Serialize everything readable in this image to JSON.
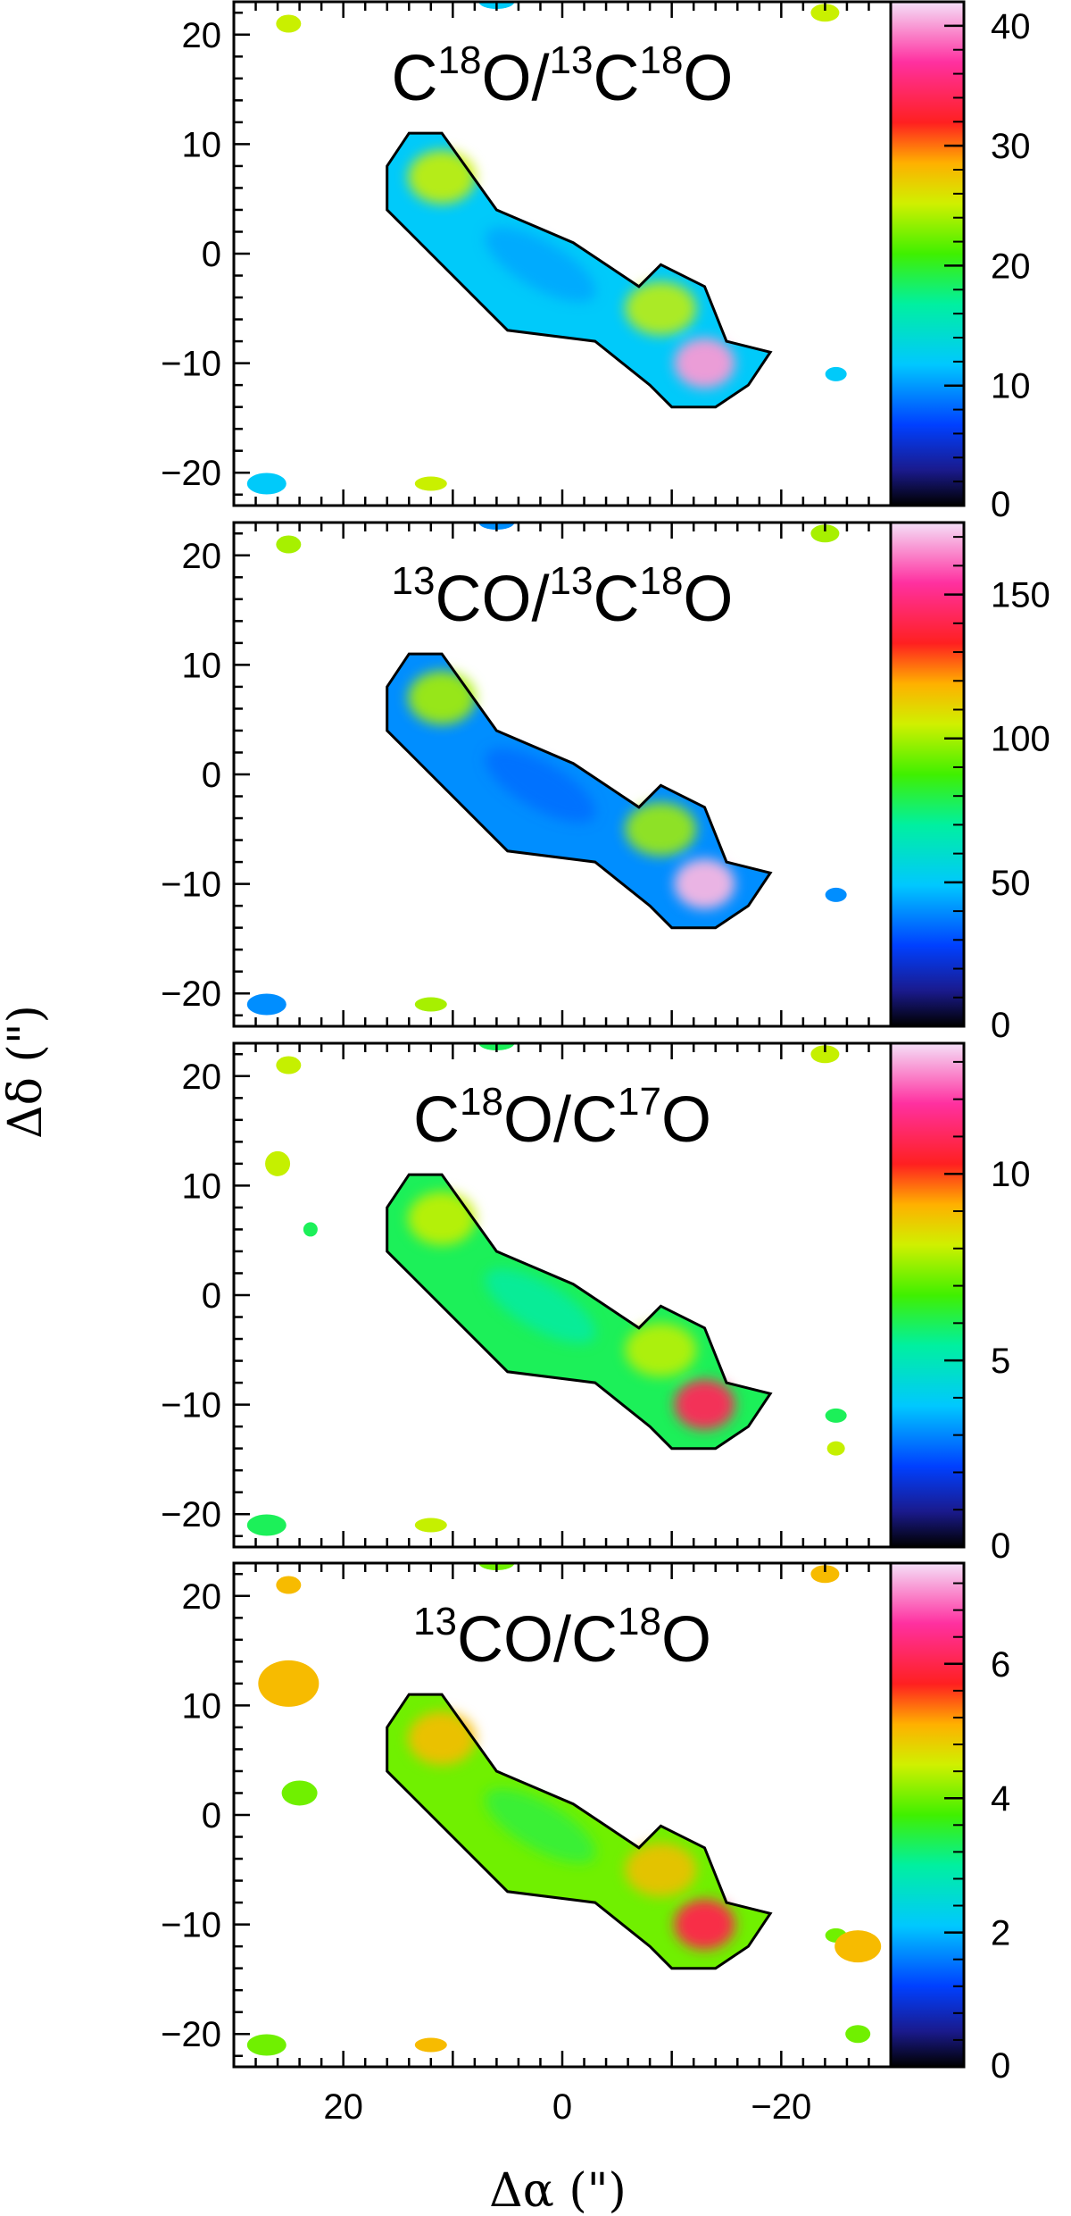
{
  "figure": {
    "xlabel": "Δα (\")",
    "ylabel": "Δδ (\")",
    "x_ticks": [
      "20",
      "0",
      "−20"
    ],
    "y_ticks": [
      "20",
      "10",
      "0",
      "−10",
      "−20"
    ]
  },
  "chart_data": [
    {
      "type": "heatmap",
      "title_parts": [
        {
          "t": "C",
          "sup": false
        },
        {
          "t": "18",
          "sup": true
        },
        {
          "t": "O/",
          "sup": false
        },
        {
          "t": "13",
          "sup": true
        },
        {
          "t": "C",
          "sup": false
        },
        {
          "t": "18",
          "sup": true
        },
        {
          "t": "O",
          "sup": false
        }
      ],
      "xlim": [
        30,
        -30
      ],
      "ylim": [
        -23,
        23
      ],
      "colorbar": {
        "min": 0,
        "max": 42,
        "ticks": [
          "40",
          "30",
          "20",
          "10",
          "0"
        ],
        "tick_values": [
          40,
          30,
          20,
          10,
          0
        ]
      },
      "typical_values": {
        "central_ridge": 12,
        "ridge_ends": 25,
        "southwest_peak": 40
      }
    },
    {
      "type": "heatmap",
      "title_parts": [
        {
          "t": "13",
          "sup": true
        },
        {
          "t": "CO/",
          "sup": false
        },
        {
          "t": "13",
          "sup": true
        },
        {
          "t": "C",
          "sup": false
        },
        {
          "t": "18",
          "sup": true
        },
        {
          "t": "O",
          "sup": false
        }
      ],
      "xlim": [
        30,
        -30
      ],
      "ylim": [
        -23,
        23
      ],
      "colorbar": {
        "min": 0,
        "max": 175,
        "ticks": [
          "150",
          "100",
          "50",
          "0"
        ],
        "tick_values": [
          150,
          100,
          50,
          0
        ]
      },
      "typical_values": {
        "central_ridge": 40,
        "ridge_ends": 100,
        "southwest_peak": 170
      }
    },
    {
      "type": "heatmap",
      "title_parts": [
        {
          "t": "C",
          "sup": false
        },
        {
          "t": "18",
          "sup": true
        },
        {
          "t": "O/C",
          "sup": false
        },
        {
          "t": "17",
          "sup": true
        },
        {
          "t": "O",
          "sup": false
        }
      ],
      "xlim": [
        30,
        -30
      ],
      "ylim": [
        -23,
        23
      ],
      "colorbar": {
        "min": 0,
        "max": 13.5,
        "ticks": [
          "10",
          "5",
          "0"
        ],
        "tick_values": [
          10,
          5,
          0
        ]
      },
      "typical_values": {
        "central_ridge": 6,
        "ridge_ends": 8,
        "southwest_peak": 11
      }
    },
    {
      "type": "heatmap",
      "title_parts": [
        {
          "t": "13",
          "sup": true
        },
        {
          "t": "CO/C",
          "sup": false
        },
        {
          "t": "18",
          "sup": true
        },
        {
          "t": "O",
          "sup": false
        }
      ],
      "xlim": [
        30,
        -30
      ],
      "ylim": [
        -23,
        23
      ],
      "colorbar": {
        "min": 0,
        "max": 7.5,
        "ticks": [
          "6",
          "4",
          "2",
          "0"
        ],
        "tick_values": [
          6,
          4,
          2,
          0
        ]
      },
      "typical_values": {
        "central_ridge": 4,
        "ridge_ends": 5,
        "southwest_peak": 6
      }
    }
  ]
}
